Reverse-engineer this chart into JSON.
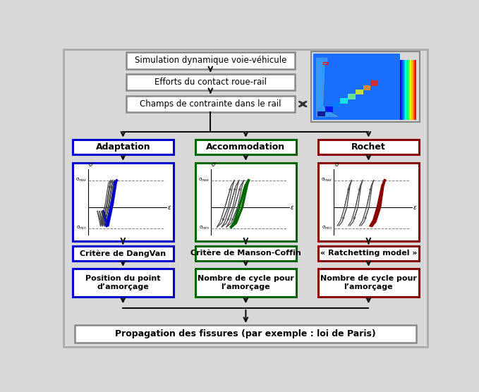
{
  "col_colors": [
    "#0000CC",
    "#006600",
    "#8B0000"
  ],
  "col_labels": [
    "Adaptation",
    "Accommodation",
    "Rochet"
  ],
  "criteria_labels": [
    "Critère de DangVan",
    "Critère de Manson-Coffin",
    "« Ratchetting model »"
  ],
  "result_labels": [
    "Position du point\nd’amorçage",
    "Nombre de cycle pour\nl’amorçage",
    "Nombre de cycle pour\nl’amorçage"
  ],
  "bottom_box_text": "Propagation des fissures (par exemple : loi de Paris)",
  "top_boxes": [
    "Simulation dynamique voie-véhicule",
    "Efforts du contact roue-rail",
    "Champs de contrainte dans le rail"
  ],
  "bg_color": "#d8d8d8",
  "box_bg": "#ffffff",
  "gray_ec": "#888888",
  "arrow_color": "#111111",
  "gray_lw": 1.8,
  "col_lw": 2.2
}
